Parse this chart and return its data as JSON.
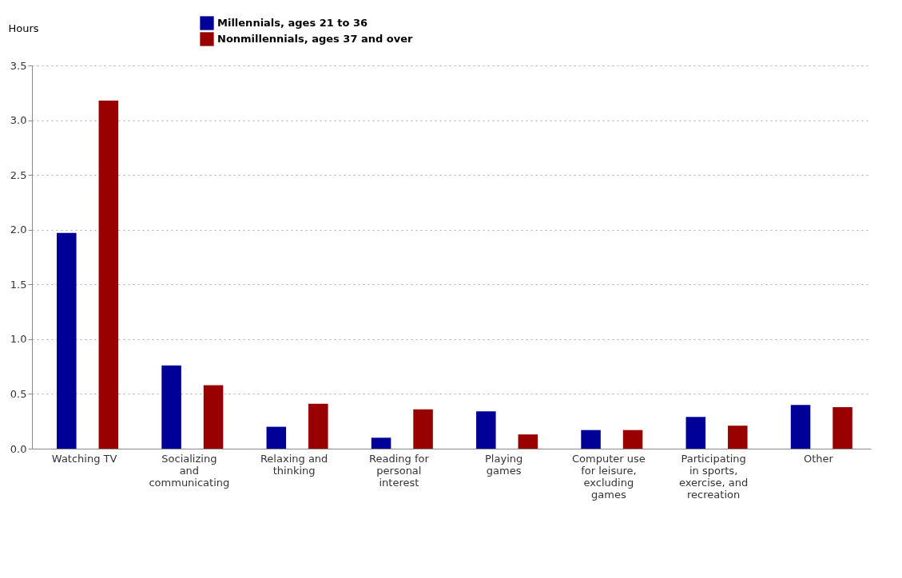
{
  "chart_data": {
    "type": "bar",
    "ylabel": "Hours",
    "categories": [
      "Watching TV",
      "Socializing and communicating",
      "Relaxing and thinking",
      "Reading for personal interest",
      "Playing games",
      "Computer use for leisure, excluding games",
      "Participating in sports, exercise, and recreation",
      "Other"
    ],
    "series": [
      {
        "name": "Millennials, ages 21 to 36",
        "color": "#000099",
        "values": [
          1.97,
          0.76,
          0.2,
          0.1,
          0.34,
          0.17,
          0.29,
          0.4
        ]
      },
      {
        "name": "Nonmillennials, ages 37 and over",
        "color": "#990000",
        "values": [
          3.18,
          0.58,
          0.41,
          0.36,
          0.13,
          0.17,
          0.21,
          0.38
        ]
      }
    ],
    "ylim": [
      0,
      3.5
    ],
    "yticks": [
      {
        "value": 0,
        "label": "0.0"
      },
      {
        "value": 0.5,
        "label": "0.5"
      },
      {
        "value": 1,
        "label": "1.0"
      },
      {
        "value": 1.5,
        "label": "1.5"
      },
      {
        "value": 2,
        "label": "2.0"
      },
      {
        "value": 2.5,
        "label": "2.5"
      },
      {
        "value": 3,
        "label": "3.0"
      },
      {
        "value": 3.5,
        "label": "3.5"
      }
    ],
    "grid": "y",
    "legend": "top"
  }
}
